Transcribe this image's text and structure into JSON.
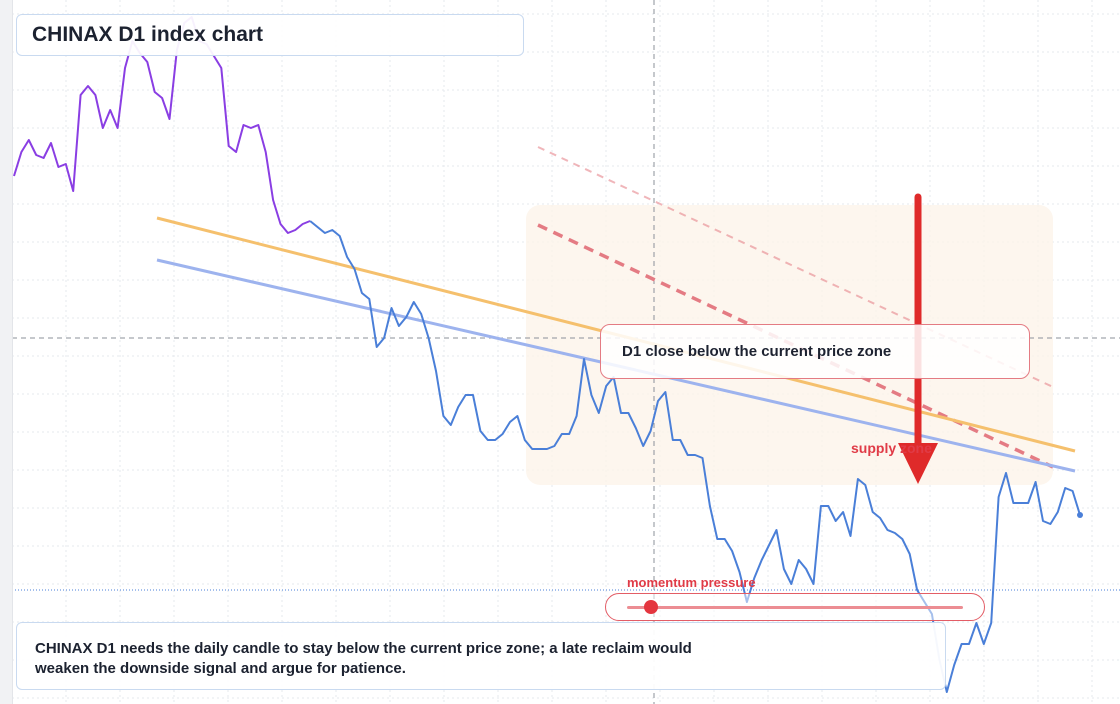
{
  "title": "CHINAX D1 index chart",
  "callout": "D1 close below the current price zone",
  "supply_label": "supply zone",
  "momentum": {
    "label": "momentum pressure",
    "level": 0.07
  },
  "note": "CHINAX D1 needs the daily candle to stay below the current price zone; a late reclaim would weaken the downside signal and argue for patience.",
  "colors": {
    "price_up_segment": "#8a3ee3",
    "price_down_segment": "#4a7fd8",
    "price_tail": "#3fb4e6",
    "trendline_orange": "#f5c06d",
    "trendline_blue": "#9db3ee",
    "resistance_dashed": "#e47b83",
    "arrow": "#df2a2a",
    "supply_zone_fill": "#fdf4ea"
  },
  "chart_data": {
    "type": "line",
    "title": "CHINAX D1 index chart",
    "xlabel": "",
    "ylabel": "",
    "grid": true,
    "y_inverted_scale_note": "",
    "series": [
      {
        "values": [
          60,
          68,
          72,
          67,
          66,
          71,
          63,
          64,
          55,
          87,
          90,
          87,
          76,
          82,
          76,
          96,
          105,
          101,
          98,
          88,
          86,
          79,
          102,
          111,
          113,
          105,
          104,
          100,
          96,
          70,
          68,
          77,
          76,
          77,
          68,
          52,
          44,
          41,
          42,
          44,
          45,
          43,
          41,
          42,
          40,
          33,
          29,
          21,
          19,
          3,
          6,
          16,
          10,
          13,
          18,
          14,
          6,
          -5,
          -20,
          -23,
          -17,
          -13,
          -13,
          -25,
          -28,
          -28,
          -26,
          -22,
          -20,
          -28,
          -31,
          -31,
          -31,
          -30,
          -26,
          -26,
          -20,
          -1,
          -13,
          -19,
          -10,
          -7,
          -19,
          -19,
          -24,
          -30,
          -25,
          -15,
          -12,
          -28,
          -28,
          -33,
          -33,
          -34,
          -50,
          -61,
          -61,
          -65,
          -72,
          -82,
          -74,
          -68,
          -63,
          -58,
          -71,
          -76,
          -68,
          -71,
          -76,
          -50,
          -50,
          -55,
          -52,
          -60,
          -41,
          -43,
          -52,
          -54,
          -58,
          -59,
          -61,
          -66,
          -78,
          -82,
          -86,
          -101,
          -112,
          -103,
          -96,
          -96,
          -89,
          -96,
          -89,
          -47,
          -39,
          -49,
          -49,
          -49,
          -42,
          -55,
          -56,
          -52,
          -44,
          -45,
          -53
        ]
      }
    ],
    "annotations": [
      "current price zone",
      "supply zone",
      "momentum pressure"
    ]
  }
}
